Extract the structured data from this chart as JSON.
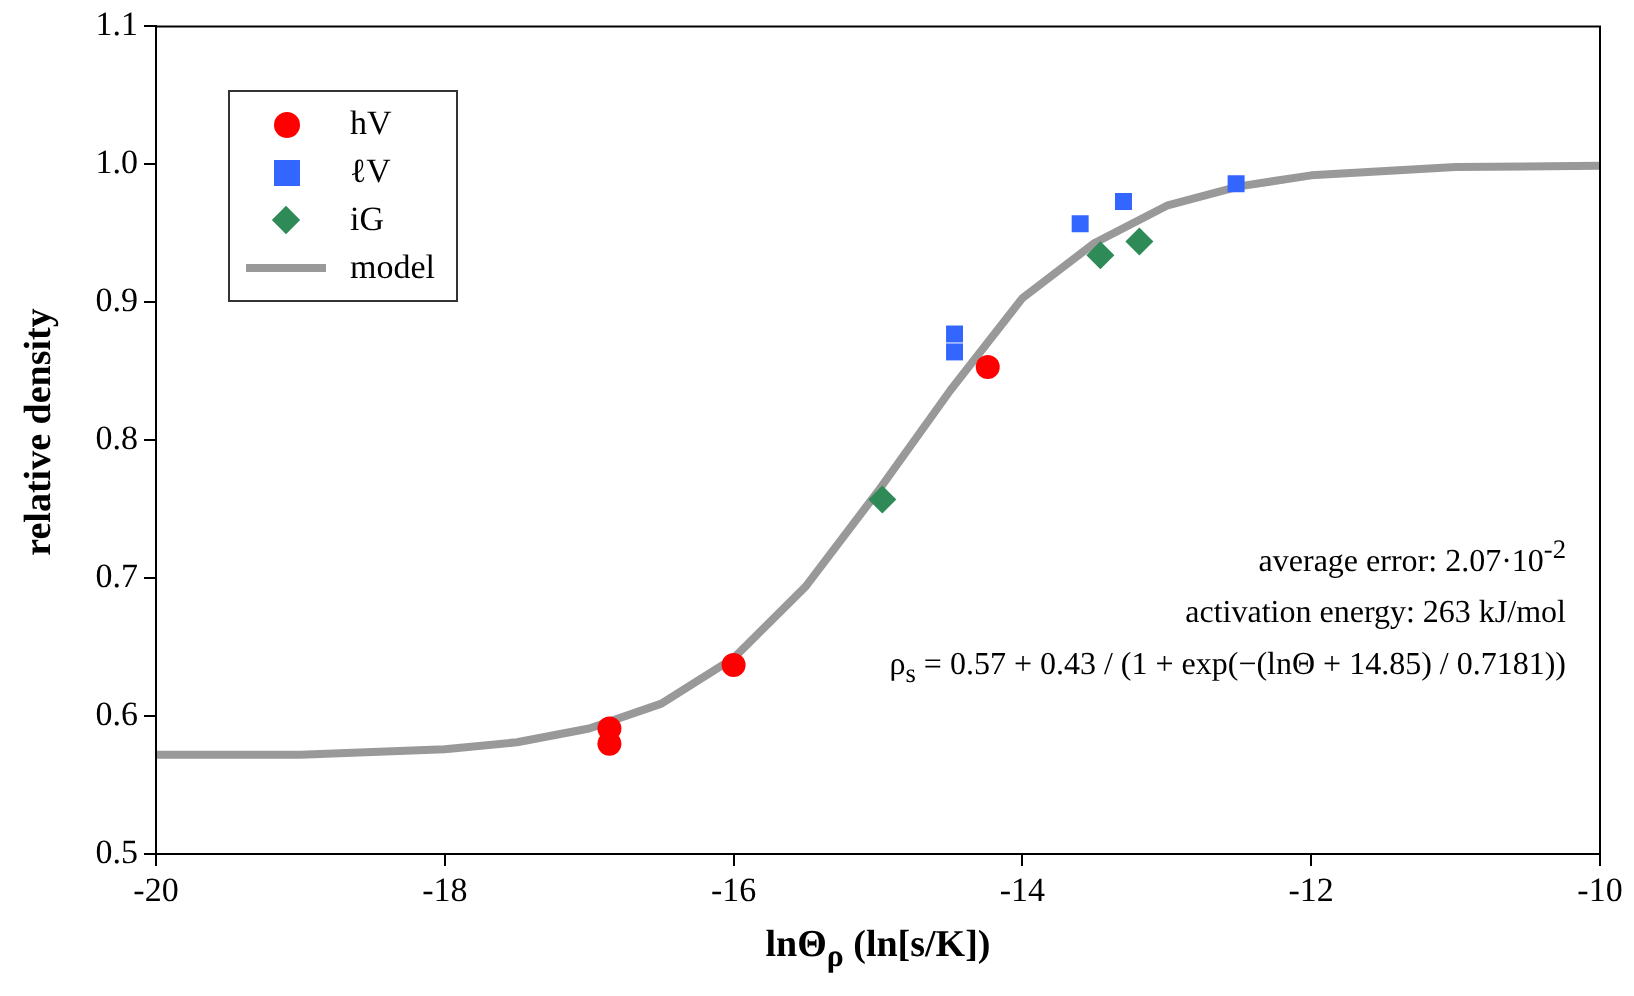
{
  "chart_data": {
    "type": "scatter",
    "xlabel": "lnΘ$_{ρ}$ (ln[s/K])",
    "ylabel": "relative density",
    "xlim": [
      -20,
      -10
    ],
    "xticks": [
      -20,
      -18,
      -16,
      -14,
      -12,
      -10
    ],
    "ylim": [
      0.5,
      1.1
    ],
    "yticks": [
      0.5,
      0.6,
      0.7,
      0.8,
      0.9,
      {
        "value": 1,
        "label": "1.0"
      },
      1.1
    ],
    "grid": false,
    "legend": "top left",
    "annotations": [
      "average error: 2.07·10$^{-2}$",
      "activation energy: 263 kJ/mol",
      "ρ$_{s}$ = 0.57 + 0.43 / (1 + exp(−(lnΘ + 14.85) / 0.7181))"
    ],
    "series": [
      {
        "name": "hV",
        "marker": "circle",
        "color": "#ff0000",
        "x": [
          -16.86,
          -16.86,
          -16.0,
          -14.24
        ],
        "values": [
          0.591,
          0.58,
          0.637,
          0.853
        ]
      },
      {
        "name": "ℓV",
        "marker": "square",
        "color": "#3366ff",
        "x": [
          -14.47,
          -14.47,
          -13.6,
          -13.3,
          -12.52
        ],
        "values": [
          0.877,
          0.864,
          0.957,
          0.973,
          0.986
        ]
      },
      {
        "name": "iG",
        "marker": "diamond",
        "color": "#2e8b57",
        "x": [
          -14.97,
          -13.46,
          -13.19
        ],
        "values": [
          0.757,
          0.934,
          0.944
        ]
      },
      {
        "name": "model",
        "type": "line",
        "marker": "none",
        "line_style": "solid",
        "color": "#999999",
        "x": [
          -20,
          -19,
          -18,
          -17.5,
          -17,
          -16.5,
          -16,
          -15.5,
          -15,
          -14.5,
          -14,
          -13.5,
          -13,
          -12.5,
          -12,
          -11,
          -10
        ],
        "values": [
          0.572,
          0.572,
          0.576,
          0.581,
          0.591,
          0.609,
          0.642,
          0.694,
          0.763,
          0.836,
          0.903,
          0.943,
          0.97,
          0.984,
          0.992,
          0.998,
          0.999
        ]
      }
    ]
  }
}
